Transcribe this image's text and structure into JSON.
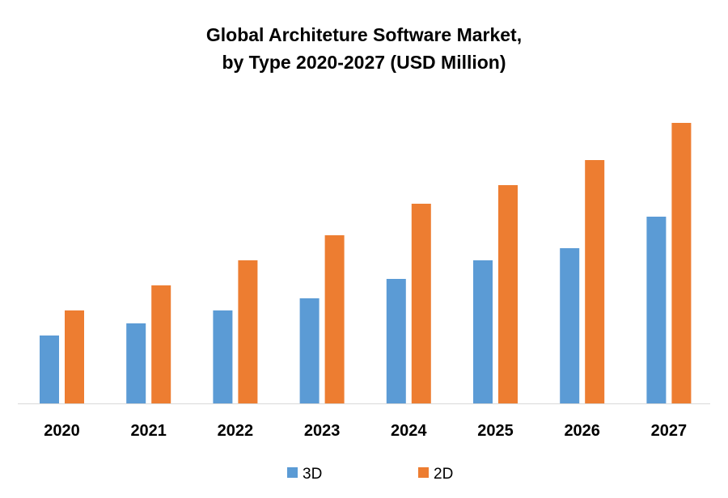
{
  "chart_data": {
    "type": "bar",
    "title_line1": "Global Architeture Software Market,",
    "title_line2": "by Type 2020-2027 (USD Million)",
    "xlabel": "",
    "ylabel": "",
    "categories": [
      "2020",
      "2021",
      "2022",
      "2023",
      "2024",
      "2025",
      "2026",
      "2027"
    ],
    "series": [
      {
        "name": "3D",
        "color": "#5B9BD5",
        "values": [
          84,
          99,
          115,
          130,
          154,
          177,
          192,
          231
        ]
      },
      {
        "name": "2D",
        "color": "#ED7D31",
        "values": [
          115,
          146,
          177,
          208,
          247,
          270,
          301,
          347
        ]
      }
    ],
    "ylim": [
      0,
      360
    ],
    "grid": false,
    "legend": "bottom-center",
    "value_axis_shown": false
  }
}
